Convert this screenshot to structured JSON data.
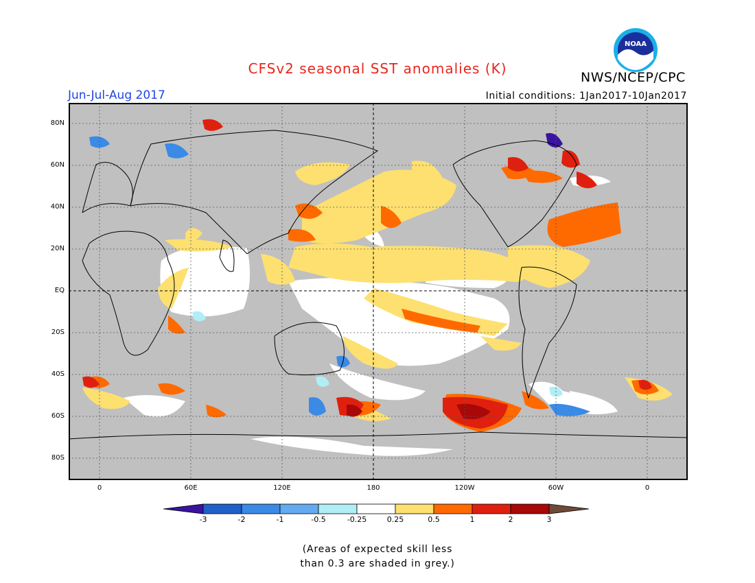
{
  "title": "CFSv2 seasonal SST anomalies (K)",
  "organization": "NWS/NCEP/CPC",
  "logo_text": "NOAA",
  "season": "Jun-Jul-Aug 2017",
  "initial_conditions": "Initial conditions: 1Jan2017-10Jan2017",
  "latitude_labels": [
    "80N",
    "60N",
    "40N",
    "20N",
    "EQ",
    "20S",
    "40S",
    "60S",
    "80S"
  ],
  "longitude_labels": [
    "0",
    "60E",
    "120E",
    "180",
    "120W",
    "60W",
    "0"
  ],
  "colorbar": {
    "labels": [
      "-3",
      "-2",
      "-1",
      "-0.5",
      "-0.25",
      "0.25",
      "0.5",
      "1",
      "2",
      "3"
    ],
    "colors": [
      "#3a14a0",
      "#2060c8",
      "#3a8ae6",
      "#64aaf0",
      "#b0eef6",
      "#ffffff",
      "#fde070",
      "#ff6a00",
      "#e0200e",
      "#a80808",
      "#6e4a38"
    ]
  },
  "note": [
    "(Areas of expected skill less",
    "than 0.3 are shaded in grey.)"
  ],
  "colors": {
    "title": "#e8261c",
    "season": "#1f45e0",
    "grey_mask": "#c0c0c0"
  }
}
